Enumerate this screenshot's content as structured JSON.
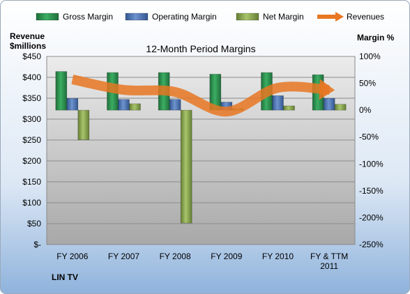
{
  "chart_data": {
    "type": "bar",
    "title": "12-Month Period Margins",
    "company": "LIN TV",
    "categories": [
      "FY 2006",
      "FY 2007",
      "FY 2008",
      "FY 2009",
      "FY 2010",
      "FY & TTM 2011"
    ],
    "category_lines": [
      [
        "FY 2006"
      ],
      [
        "FY 2007"
      ],
      [
        "FY 2008"
      ],
      [
        "FY 2009"
      ],
      [
        "FY 2010"
      ],
      [
        "FY & TTM",
        "2011"
      ]
    ],
    "left_axis": {
      "label_lines": [
        "Revenue",
        "$millions"
      ],
      "ylim": [
        0,
        450
      ],
      "ticks": [
        0,
        50,
        100,
        150,
        200,
        250,
        300,
        350,
        400,
        450
      ],
      "tick_labels": [
        "$-",
        "$50",
        "$100",
        "$150",
        "$200",
        "$250",
        "$300",
        "$350",
        "$400",
        "$450"
      ]
    },
    "right_axis": {
      "label": "Margin %",
      "ylim": [
        -250,
        100
      ],
      "ticks": [
        -250,
        -200,
        -150,
        -100,
        -50,
        0,
        50,
        100
      ],
      "tick_labels": [
        "-250%",
        "-200%",
        "-150%",
        "-100%",
        "-50%",
        "0%",
        "50%",
        "100%"
      ]
    },
    "series": [
      {
        "name": "Gross Margin",
        "kind": "bar",
        "axis": "right",
        "color": "#2e8b4e",
        "values": [
          72,
          70,
          70,
          67,
          70,
          66
        ]
      },
      {
        "name": "Operating Margin",
        "kind": "bar",
        "axis": "right",
        "color": "#4a72b0",
        "values": [
          22,
          20,
          20,
          15,
          27,
          22
        ]
      },
      {
        "name": "Net Margin",
        "kind": "bar",
        "axis": "right",
        "color": "#8aaa4c",
        "values": [
          -55,
          12,
          -210,
          3,
          8,
          11
        ]
      },
      {
        "name": "Revenues",
        "kind": "line",
        "axis": "left",
        "color": "#e87722",
        "values": [
          395,
          370,
          365,
          318,
          375,
          370
        ]
      }
    ],
    "legend_position": "top",
    "grid": true
  }
}
